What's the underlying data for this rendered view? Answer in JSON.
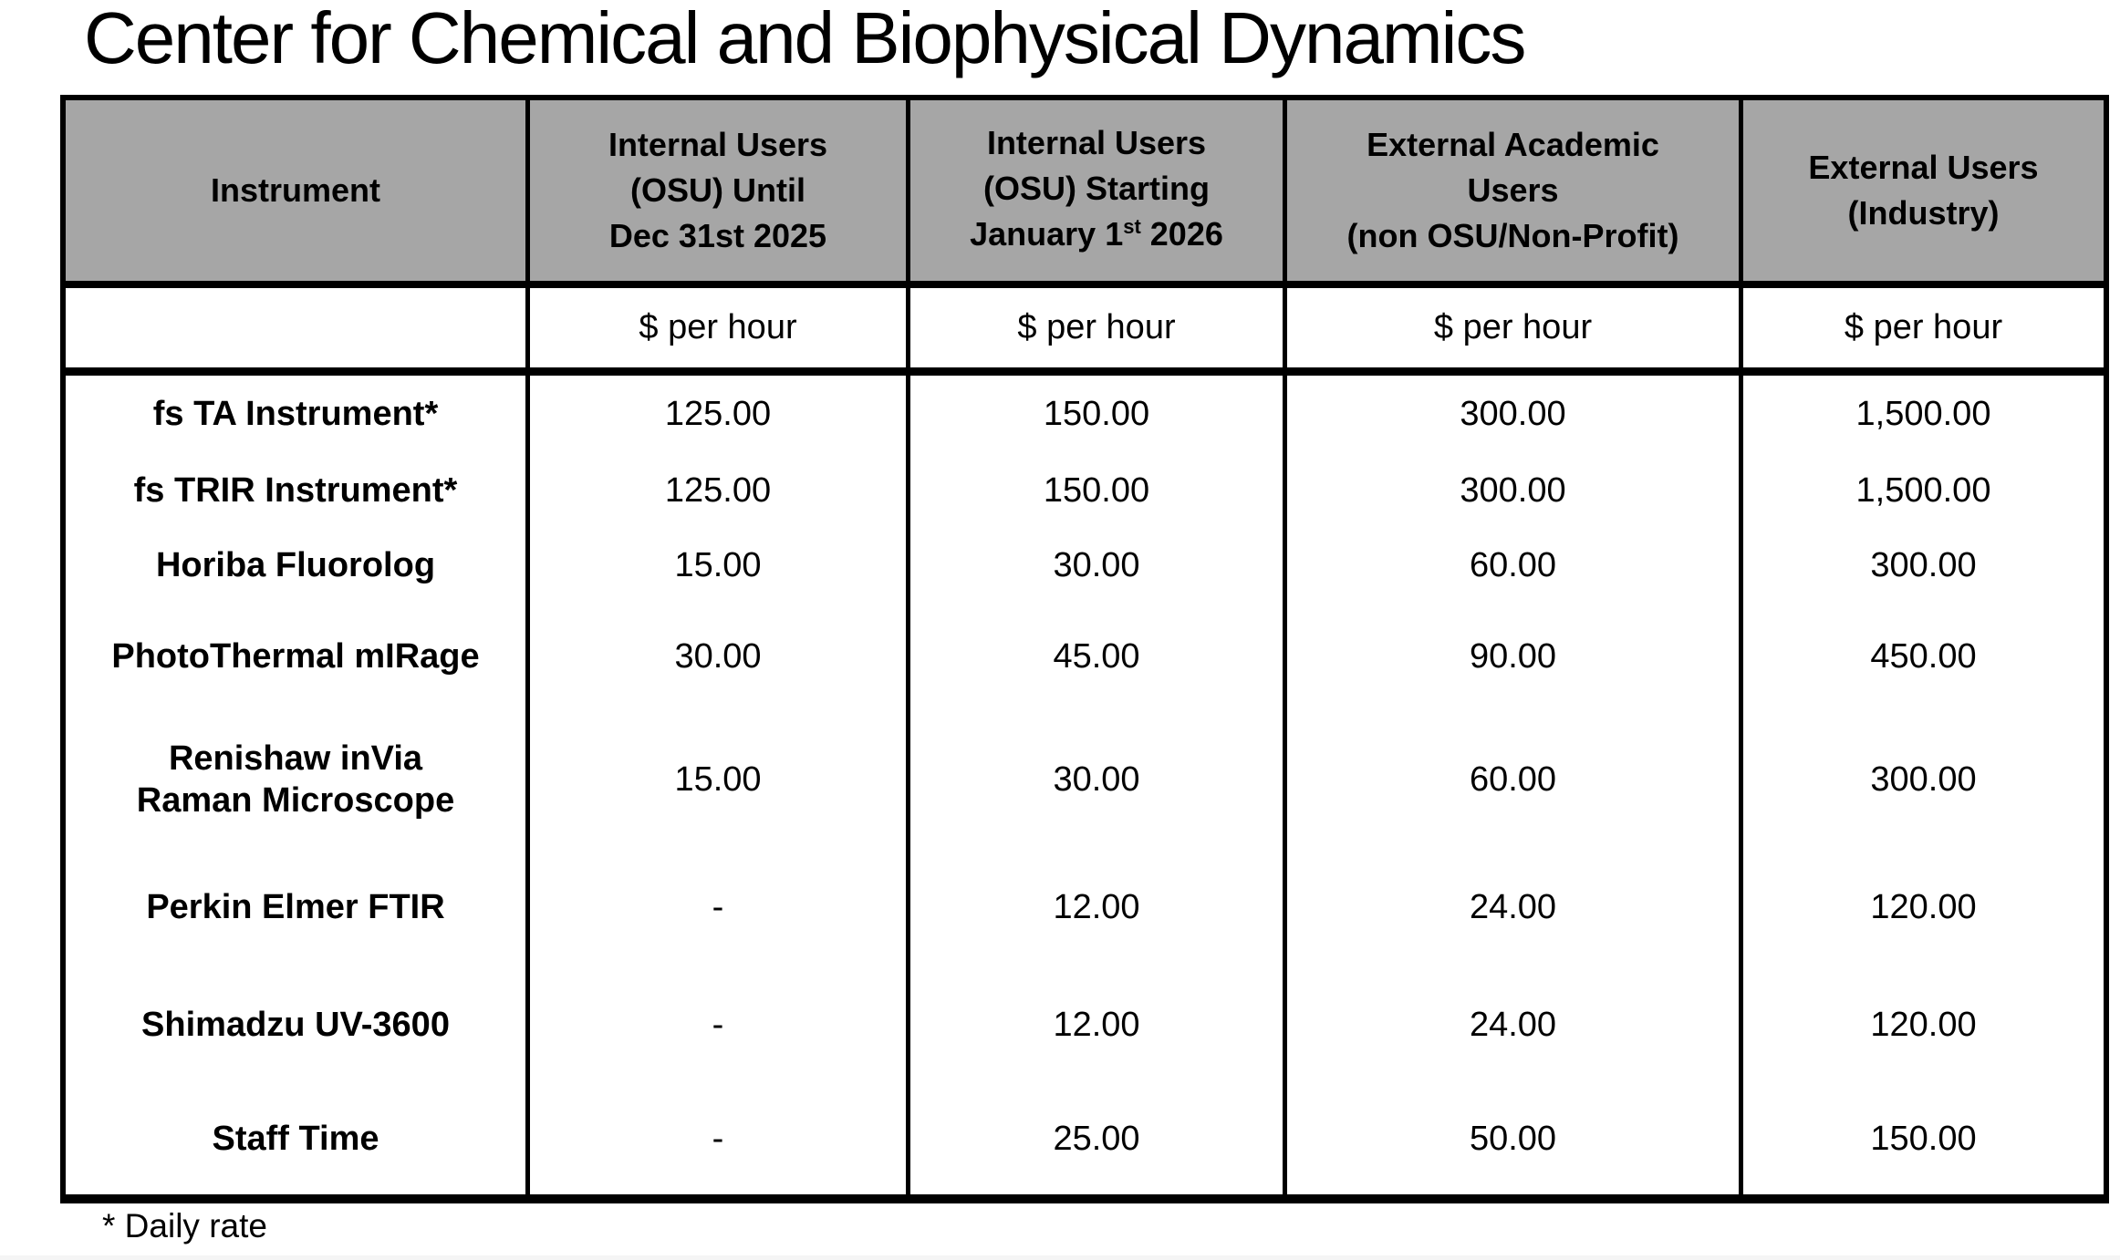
{
  "page": {
    "title": "Center for Chemical and Biophysical Dynamics",
    "footnote": "* Daily rate"
  },
  "colors": {
    "header_bg": "#A6A6A6",
    "border": "#000000",
    "page_bg": "#FFFFFF",
    "text": "#000000"
  },
  "table": {
    "header": {
      "instrument": "Instrument",
      "internal_until": "Internal Users\n(OSU) Until\nDec 31st 2025",
      "internal_starting_top": "Internal Users\n(OSU) Starting",
      "internal_starting_line3_prefix": "January 1",
      "internal_starting_line3_sup": "st",
      "internal_starting_line3_suffix": " 2026",
      "external_academic": "External Academic\nUsers\n(non OSU/Non-Profit)",
      "external_industry": "External Users\n(Industry)"
    },
    "unit_row": {
      "instrument": "",
      "units": [
        "$ per hour",
        "$ per hour",
        "$ per hour",
        "$ per hour"
      ]
    },
    "rows": [
      {
        "instrument": "fs TA Instrument*",
        "values": [
          "125.00",
          "150.00",
          "300.00",
          "1,500.00"
        ]
      },
      {
        "instrument": "fs TRIR Instrument*",
        "values": [
          "125.00",
          "150.00",
          "300.00",
          "1,500.00"
        ]
      },
      {
        "instrument": "Horiba Fluorolog",
        "values": [
          "15.00",
          "30.00",
          "60.00",
          "300.00"
        ]
      },
      {
        "instrument": "PhotoThermal mIRage",
        "values": [
          "30.00",
          "45.00",
          "90.00",
          "450.00"
        ]
      },
      {
        "instrument": "Renishaw inVia\nRaman Microscope",
        "values": [
          "15.00",
          "30.00",
          "60.00",
          "300.00"
        ]
      },
      {
        "instrument": "Perkin Elmer FTIR",
        "values": [
          "-",
          "12.00",
          "24.00",
          "120.00"
        ]
      },
      {
        "instrument": "Shimadzu UV-3600",
        "values": [
          "-",
          "12.00",
          "24.00",
          "120.00"
        ]
      },
      {
        "instrument": "Staff Time",
        "values": [
          "-",
          "25.00",
          "50.00",
          "150.00"
        ]
      }
    ]
  }
}
